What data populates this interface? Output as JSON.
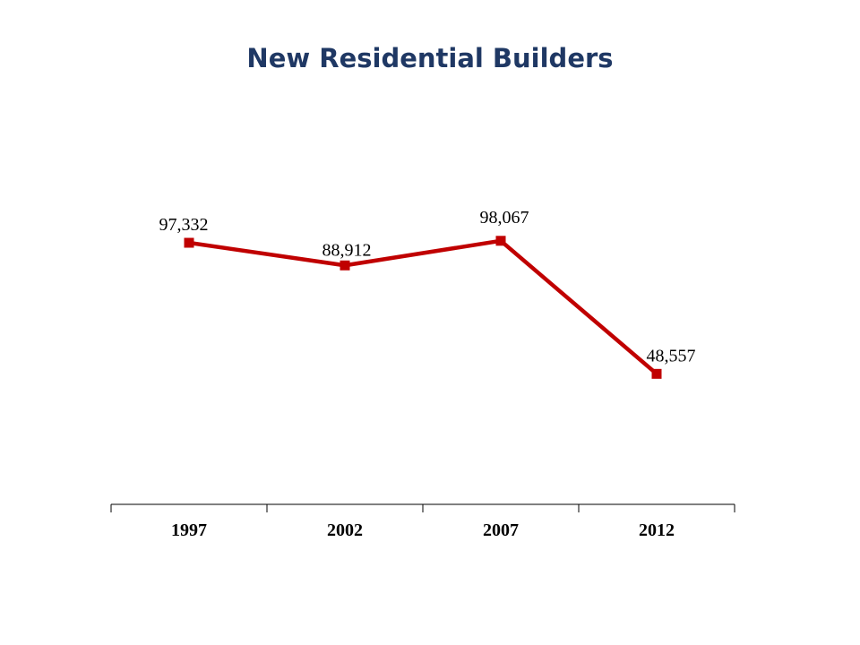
{
  "chart_data": {
    "type": "line",
    "title": "New Residential Builders",
    "categories": [
      "1997",
      "2002",
      "2007",
      "2012"
    ],
    "series": [
      {
        "values": [
          97332,
          88912,
          98067,
          48557
        ],
        "labels": [
          "97,332",
          "88,912",
          "98,067",
          "48,557"
        ],
        "color": "#c00000"
      }
    ],
    "xlabel": "",
    "ylabel": "",
    "ylim": [
      0,
      180000
    ],
    "grid": false,
    "legend": "none"
  }
}
